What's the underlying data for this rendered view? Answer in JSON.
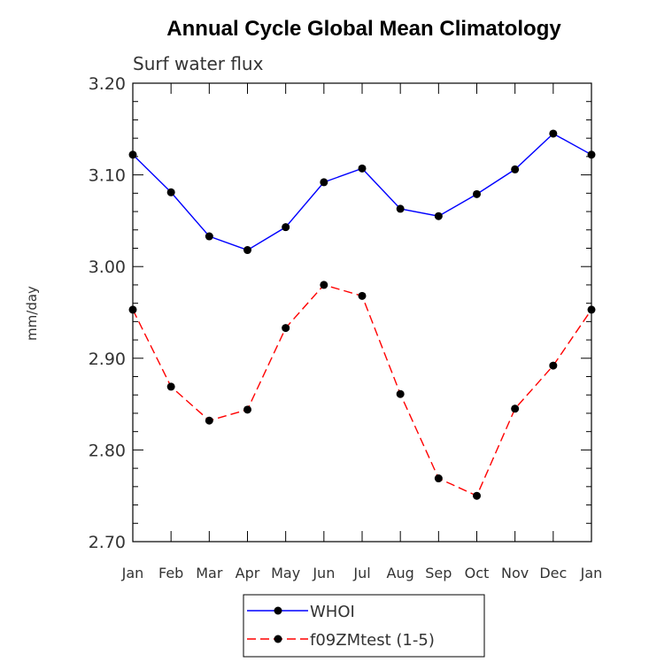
{
  "chart_data": {
    "type": "line",
    "title": "Annual Cycle Global Mean Climatology",
    "subtitle": "Surf water flux",
    "ylabel": "mm/day",
    "xlabel": "",
    "categories": [
      "Jan",
      "Feb",
      "Mar",
      "Apr",
      "May",
      "Jun",
      "Jul",
      "Aug",
      "Sep",
      "Oct",
      "Nov",
      "Dec",
      "Jan"
    ],
    "ylim": [
      2.7,
      3.2
    ],
    "yticks": [
      "2.70",
      "2.80",
      "2.90",
      "3.00",
      "3.10",
      "3.20"
    ],
    "grid": false,
    "legend_position": "bottom-center",
    "series": [
      {
        "name": "WHOI",
        "color": "#0000ff",
        "line_style": "solid",
        "marker": "filled-circle",
        "values": [
          3.122,
          3.081,
          3.033,
          3.018,
          3.043,
          3.092,
          3.107,
          3.063,
          3.055,
          3.079,
          3.106,
          3.145,
          3.122
        ]
      },
      {
        "name": "f09ZMtest (1-5)",
        "color": "#ff0000",
        "line_style": "dashed",
        "marker": "filled-circle",
        "values": [
          2.953,
          2.869,
          2.832,
          2.844,
          2.933,
          2.98,
          2.968,
          2.861,
          2.769,
          2.75,
          2.845,
          2.892,
          2.953
        ]
      }
    ]
  }
}
